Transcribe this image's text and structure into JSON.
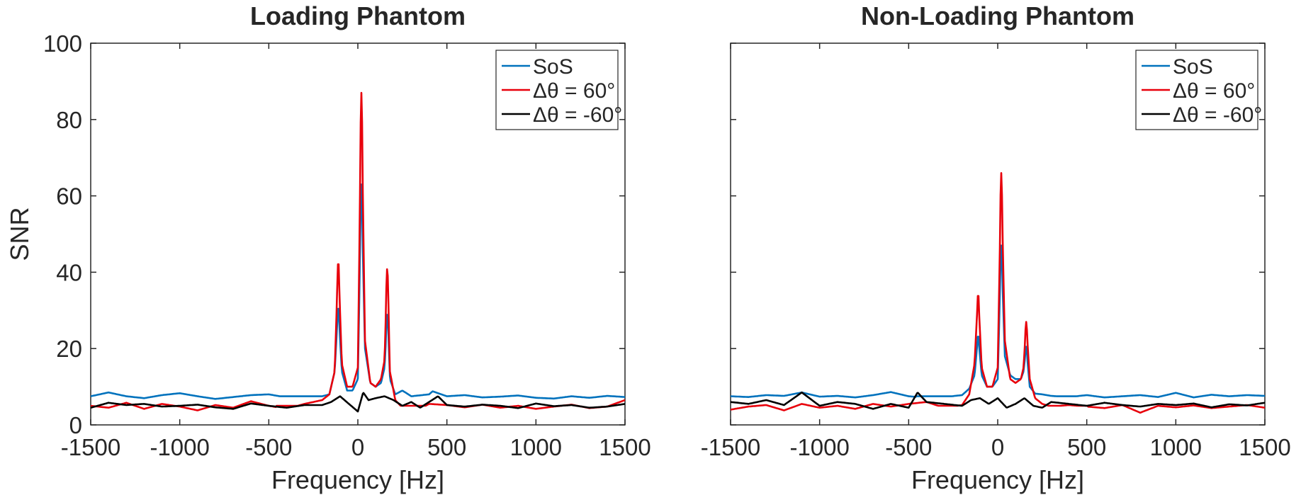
{
  "chart_data": [
    {
      "type": "line",
      "title": "Loading Phantom",
      "xlabel": "Frequency [Hz]",
      "ylabel": "SNR",
      "xlim": [
        -1500,
        1500
      ],
      "ylim": [
        0,
        100
      ],
      "xticks": [
        -1500,
        -1000,
        -500,
        0,
        500,
        1000,
        1500
      ],
      "yticks": [
        0,
        20,
        40,
        60,
        80,
        100
      ],
      "y_tick_labels_shown": true,
      "grid": false,
      "legend_position": "top-right",
      "series": [
        {
          "name": "SoS",
          "color": "#0072BD",
          "baseline": 7.5,
          "peaks": [
            [
              -110,
              31
            ],
            [
              20,
              63
            ],
            [
              165,
              29
            ]
          ],
          "x": [
            -1500,
            -1400,
            -1300,
            -1200,
            -1100,
            -1000,
            -900,
            -800,
            -700,
            -600,
            -500,
            -400,
            -300,
            -200,
            -160,
            -130,
            -110,
            -90,
            -60,
            -30,
            0,
            20,
            40,
            70,
            100,
            130,
            150,
            165,
            180,
            210,
            250,
            300,
            400,
            420,
            500,
            600,
            700,
            800,
            900,
            1000,
            1100,
            1200,
            1300,
            1400,
            1500
          ],
          "y": [
            7.5,
            8.5,
            7.5,
            7,
            7.8,
            8.3,
            7.5,
            6.8,
            7.3,
            7.8,
            8,
            7.2,
            6.8,
            7.5,
            8,
            14,
            31,
            14,
            9,
            9,
            12,
            63,
            20,
            11,
            10,
            11,
            15,
            29,
            12,
            8,
            9,
            7.5,
            8,
            8.8,
            7.5,
            7.8,
            7.2,
            7.4,
            7.7,
            7.1,
            6.9,
            7.5,
            7.1,
            7.6,
            7.3
          ]
        },
        {
          "name": "Δθ = 60°",
          "color": "#E8000B",
          "baseline": 5,
          "peaks": [
            [
              -110,
              43
            ],
            [
              20,
              87
            ],
            [
              165,
              41
            ]
          ],
          "x": [
            -1500,
            -1400,
            -1300,
            -1200,
            -1100,
            -1000,
            -900,
            -800,
            -700,
            -600,
            -500,
            -400,
            -300,
            -200,
            -160,
            -130,
            -110,
            -90,
            -60,
            -30,
            0,
            20,
            40,
            70,
            100,
            130,
            150,
            165,
            180,
            210,
            250,
            290,
            350,
            400,
            500,
            600,
            700,
            800,
            900,
            1000,
            1100,
            1200,
            1300,
            1400,
            1500
          ],
          "y": [
            5,
            4.5,
            5.8,
            4.2,
            5.5,
            4.8,
            3.8,
            5.2,
            4.5,
            6.2,
            5,
            4.2,
            5.5,
            6.5,
            8,
            14,
            43,
            16,
            10,
            10,
            15,
            87,
            22,
            11,
            10,
            12,
            17,
            41,
            14,
            6.5,
            4.5,
            3,
            4.2,
            5.5,
            5.2,
            4.6,
            5.3,
            4.5,
            5,
            4.2,
            4.8,
            5.3,
            4.4,
            4.8,
            6.5
          ]
        },
        {
          "name": "Δθ = -60°",
          "color": "#000000",
          "baseline": 5,
          "peaks": [],
          "x": [
            -1500,
            -1400,
            -1300,
            -1200,
            -1100,
            -1000,
            -900,
            -800,
            -700,
            -600,
            -500,
            -400,
            -300,
            -200,
            -150,
            -100,
            -50,
            0,
            30,
            60,
            100,
            150,
            200,
            250,
            300,
            350,
            400,
            450,
            500,
            600,
            700,
            800,
            900,
            1000,
            1100,
            1200,
            1300,
            1400,
            1500
          ],
          "y": [
            4.5,
            5.8,
            5.2,
            5.5,
            4.8,
            5,
            5.3,
            4.6,
            4.2,
            5.6,
            5,
            4.5,
            5.2,
            5.2,
            6,
            7.5,
            5.5,
            3.5,
            8.5,
            6.5,
            7,
            7.5,
            6.5,
            5,
            6,
            4.5,
            6,
            7.5,
            5.2,
            4.8,
            5.3,
            5,
            4.4,
            5.6,
            4.9,
            5.2,
            4.5,
            4.8,
            5.5
          ]
        }
      ]
    },
    {
      "type": "line",
      "title": "Non-Loading Phantom",
      "xlabel": "Frequency [Hz]",
      "ylabel": "",
      "xlim": [
        -1500,
        1500
      ],
      "ylim": [
        0,
        100
      ],
      "xticks": [
        -1500,
        -1000,
        -500,
        0,
        500,
        1000,
        1500
      ],
      "yticks": [
        0,
        20,
        40,
        60,
        80,
        100
      ],
      "y_tick_labels_shown": false,
      "grid": false,
      "legend_position": "top-right",
      "series": [
        {
          "name": "SoS",
          "color": "#0072BD",
          "baseline": 7.5,
          "peaks": [
            [
              -110,
              23.5
            ],
            [
              20,
              47
            ],
            [
              160,
              20.5
            ]
          ],
          "x": [
            -1500,
            -1400,
            -1300,
            -1200,
            -1100,
            -1000,
            -900,
            -800,
            -700,
            -600,
            -500,
            -400,
            -300,
            -200,
            -160,
            -130,
            -110,
            -90,
            -60,
            -30,
            0,
            20,
            40,
            70,
            100,
            130,
            145,
            160,
            180,
            210,
            250,
            300,
            400,
            500,
            600,
            700,
            800,
            900,
            1000,
            1100,
            1200,
            1300,
            1400,
            1500
          ],
          "y": [
            7.5,
            7.3,
            7.8,
            7.6,
            8.5,
            7.4,
            7.6,
            7.2,
            7.8,
            8.6,
            7.5,
            7.1,
            7.3,
            7.8,
            9.5,
            13,
            23.5,
            13,
            10,
            10,
            12,
            47,
            18,
            13,
            12,
            12,
            14,
            20.5,
            10,
            8.2,
            8,
            7.6,
            7.3,
            7.8,
            7.2,
            7.5,
            7.8,
            7.3,
            8.4,
            7.2,
            7.9,
            7.5,
            7.8,
            7.6
          ]
        },
        {
          "name": "Δθ = 60°",
          "color": "#E8000B",
          "baseline": 5,
          "peaks": [
            [
              -110,
              34.5
            ],
            [
              20,
              66
            ],
            [
              160,
              27
            ]
          ],
          "x": [
            -1500,
            -1400,
            -1300,
            -1200,
            -1100,
            -1000,
            -900,
            -800,
            -700,
            -600,
            -500,
            -400,
            -300,
            -200,
            -160,
            -130,
            -110,
            -90,
            -60,
            -30,
            0,
            20,
            40,
            70,
            100,
            130,
            145,
            160,
            180,
            210,
            250,
            300,
            400,
            500,
            600,
            700,
            800,
            900,
            1000,
            1100,
            1200,
            1300,
            1400,
            1500
          ],
          "y": [
            4,
            4.8,
            5.2,
            3.8,
            5.5,
            4.5,
            5,
            4.2,
            5.5,
            4.8,
            5.5,
            6,
            4.5,
            5.2,
            8,
            16,
            34.5,
            15,
            10,
            10,
            15,
            66,
            22,
            12,
            11,
            12,
            15,
            27,
            12,
            7,
            5.5,
            4.8,
            5.2,
            4.8,
            4.4,
            5.2,
            3.2,
            5,
            4.6,
            5.1,
            4.4,
            4.8,
            5.2,
            4.5
          ]
        },
        {
          "name": "Δθ = -60°",
          "color": "#000000",
          "baseline": 5.5,
          "peaks": [],
          "x": [
            -1500,
            -1400,
            -1300,
            -1200,
            -1100,
            -1000,
            -900,
            -800,
            -700,
            -600,
            -500,
            -450,
            -400,
            -300,
            -200,
            -150,
            -100,
            -50,
            0,
            50,
            100,
            150,
            200,
            250,
            300,
            400,
            500,
            600,
            700,
            800,
            900,
            1000,
            1100,
            1200,
            1300,
            1400,
            1500
          ],
          "y": [
            6,
            5.5,
            6.5,
            5.2,
            8.5,
            5,
            6,
            5.5,
            4.2,
            5.5,
            4.5,
            8.5,
            6,
            5.5,
            5,
            6.5,
            7,
            5.5,
            7,
            4.5,
            5.5,
            7,
            5,
            4.5,
            6,
            5.5,
            5,
            5.8,
            5.2,
            4.8,
            5.5,
            5.2,
            5.6,
            4.6,
            5.4,
            5.1,
            5.8
          ]
        }
      ]
    }
  ]
}
